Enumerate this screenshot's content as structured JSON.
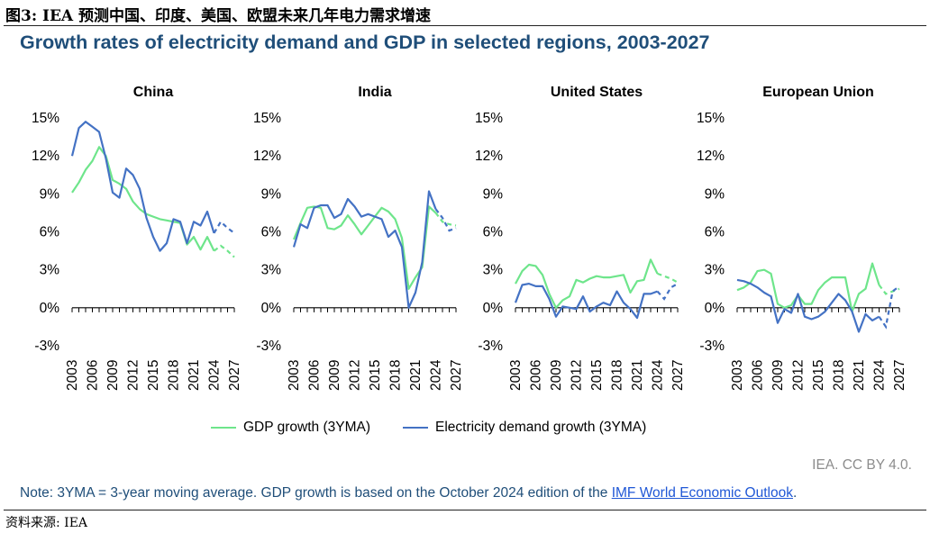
{
  "figure": {
    "caption": "图3:  IEA 预测中国、印度、美国、欧盟未来几年电力需求增速",
    "source": "资料来源:  IEA"
  },
  "colors": {
    "gdp": "#6ee58b",
    "electricity": "#4472c4",
    "title": "#1f4e79",
    "link": "#1f57d6"
  },
  "footer": {
    "credit": "IEA. CC BY 4.0.",
    "note_prefix": "Note: 3YMA = 3-year moving average. GDP growth is based on the October 2024 edition of the ",
    "note_link": "IMF World Economic Outlook",
    "note_suffix": "."
  },
  "chart_data": {
    "type": "line",
    "title": "Growth rates of electricity demand and GDP in selected regions, 2003-2027",
    "legend": {
      "gdp": "GDP growth (3YMA)",
      "electricity": "Electricity demand growth (3YMA)"
    },
    "ylim": [
      -3,
      15
    ],
    "yticks": [
      -3,
      0,
      3,
      6,
      9,
      12,
      15
    ],
    "ytick_labels": [
      "-3%",
      "0%",
      "3%",
      "6%",
      "9%",
      "12%",
      "15%"
    ],
    "xticks": [
      "2003",
      "2006",
      "2009",
      "2012",
      "2015",
      "2018",
      "2021",
      "2024",
      "2027"
    ],
    "x": [
      2003,
      2004,
      2005,
      2006,
      2007,
      2008,
      2009,
      2010,
      2011,
      2012,
      2013,
      2014,
      2015,
      2016,
      2017,
      2018,
      2019,
      2020,
      2021,
      2022,
      2023,
      2024,
      2025,
      2026,
      2027
    ],
    "forecast_from": 2024,
    "panels": [
      {
        "name": "China",
        "gdp": [
          9.1,
          9.9,
          10.9,
          11.6,
          12.7,
          12.0,
          10.1,
          9.8,
          9.4,
          8.4,
          7.8,
          7.4,
          7.2,
          7.0,
          6.9,
          6.8,
          6.7,
          5.0,
          5.6,
          4.6,
          5.6,
          4.5,
          4.9,
          4.5,
          4.0
        ],
        "electricity": [
          12.0,
          14.2,
          14.7,
          14.3,
          13.9,
          11.8,
          9.1,
          8.7,
          11.0,
          10.5,
          9.4,
          7.1,
          5.6,
          4.5,
          5.1,
          7.0,
          6.8,
          5.1,
          6.8,
          6.5,
          7.6,
          5.9,
          6.8,
          6.3,
          5.9
        ]
      },
      {
        "name": "India",
        "gdp": [
          5.4,
          6.7,
          7.9,
          8.0,
          7.9,
          6.3,
          6.2,
          6.5,
          7.3,
          6.6,
          5.8,
          6.5,
          7.2,
          7.9,
          7.6,
          7.0,
          5.5,
          1.5,
          2.4,
          3.2,
          8.0,
          7.5,
          6.8,
          6.6,
          6.5
        ],
        "electricity": [
          4.8,
          6.6,
          6.3,
          7.9,
          8.1,
          8.1,
          7.1,
          7.4,
          8.6,
          8.0,
          7.2,
          7.4,
          7.2,
          7.0,
          5.6,
          6.1,
          4.8,
          0.0,
          1.2,
          3.6,
          9.2,
          7.8,
          7.1,
          6.1,
          6.3
        ]
      },
      {
        "name": "United States",
        "gdp": [
          1.9,
          2.9,
          3.4,
          3.3,
          2.6,
          1.1,
          0.0,
          0.6,
          0.9,
          2.2,
          2.0,
          2.3,
          2.5,
          2.4,
          2.4,
          2.5,
          2.6,
          1.2,
          2.1,
          2.2,
          3.8,
          2.7,
          2.5,
          2.3,
          2.0
        ],
        "electricity": [
          0.4,
          1.8,
          1.9,
          1.7,
          1.7,
          0.7,
          -0.7,
          0.1,
          0.0,
          -0.1,
          0.9,
          -0.3,
          0.1,
          0.4,
          0.2,
          1.3,
          0.4,
          -0.1,
          -0.8,
          1.1,
          1.1,
          1.3,
          0.7,
          1.6,
          1.9
        ]
      },
      {
        "name": "European Union",
        "gdp": [
          1.4,
          1.6,
          2.0,
          2.9,
          3.0,
          2.7,
          0.3,
          0.0,
          0.2,
          1.0,
          0.3,
          0.3,
          1.4,
          2.0,
          2.4,
          2.4,
          2.4,
          -0.3,
          1.1,
          1.5,
          3.5,
          1.8,
          1.1,
          1.3,
          1.5
        ],
        "electricity": [
          2.2,
          2.1,
          1.9,
          1.6,
          1.2,
          0.9,
          -1.2,
          -0.1,
          -0.4,
          1.1,
          -0.7,
          -0.9,
          -0.7,
          -0.3,
          0.4,
          1.1,
          0.6,
          -0.3,
          -1.9,
          -0.5,
          -1.0,
          -0.7,
          -1.5,
          1.3,
          1.7
        ]
      }
    ]
  }
}
